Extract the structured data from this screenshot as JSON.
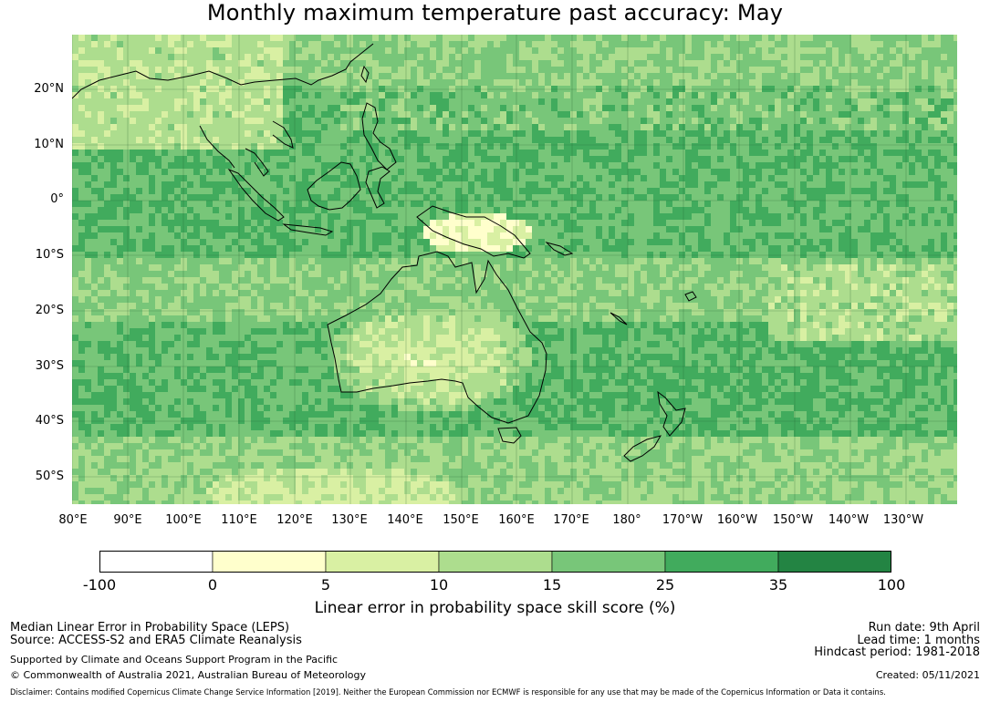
{
  "title": "Monthly maximum temperature past accuracy: May",
  "map": {
    "lat_labels": [
      "20°N",
      "10°N",
      "0°",
      "10°S",
      "20°S",
      "30°S",
      "40°S",
      "50°S"
    ],
    "lon_labels": [
      "80°E",
      "90°E",
      "100°E",
      "110°E",
      "120°E",
      "130°E",
      "140°E",
      "150°E",
      "160°E",
      "170°E",
      "180°",
      "170°W",
      "160°W",
      "150°W",
      "140°W",
      "130°W"
    ]
  },
  "colorbar": {
    "ticks": [
      "-100",
      "0",
      "5",
      "10",
      "15",
      "25",
      "35",
      "100"
    ],
    "colors": [
      "#ffffff",
      "#ffffcc",
      "#d9f0a3",
      "#addd8e",
      "#78c679",
      "#41ab5d",
      "#238443"
    ],
    "label": "Linear error in probability space skill score (%)"
  },
  "footer": {
    "left_line1": "Median Linear Error in Probability Space (LEPS)",
    "left_line2": "Source: ACCESS-S2 and ERA5 Climate Reanalysis",
    "left_line3": "Supported by Climate and Oceans Support Program in the Pacific",
    "left_line4": "© Commonwealth of Australia 2021, Australian Bureau of Meteorology",
    "right_line1": "Run date: 9th April",
    "right_line2": "Lead time: 1 months",
    "right_line3": "Hindcast period: 1981-2018",
    "right_line4": "Created: 05/11/2021",
    "disclaimer": "Disclaimer: Contains modified Copernicus Climate Change Service Information [2019]. Neither the European Commission nor ECMWF is responsible for any use that may be made of the Copernicus Information or Data it contains."
  }
}
